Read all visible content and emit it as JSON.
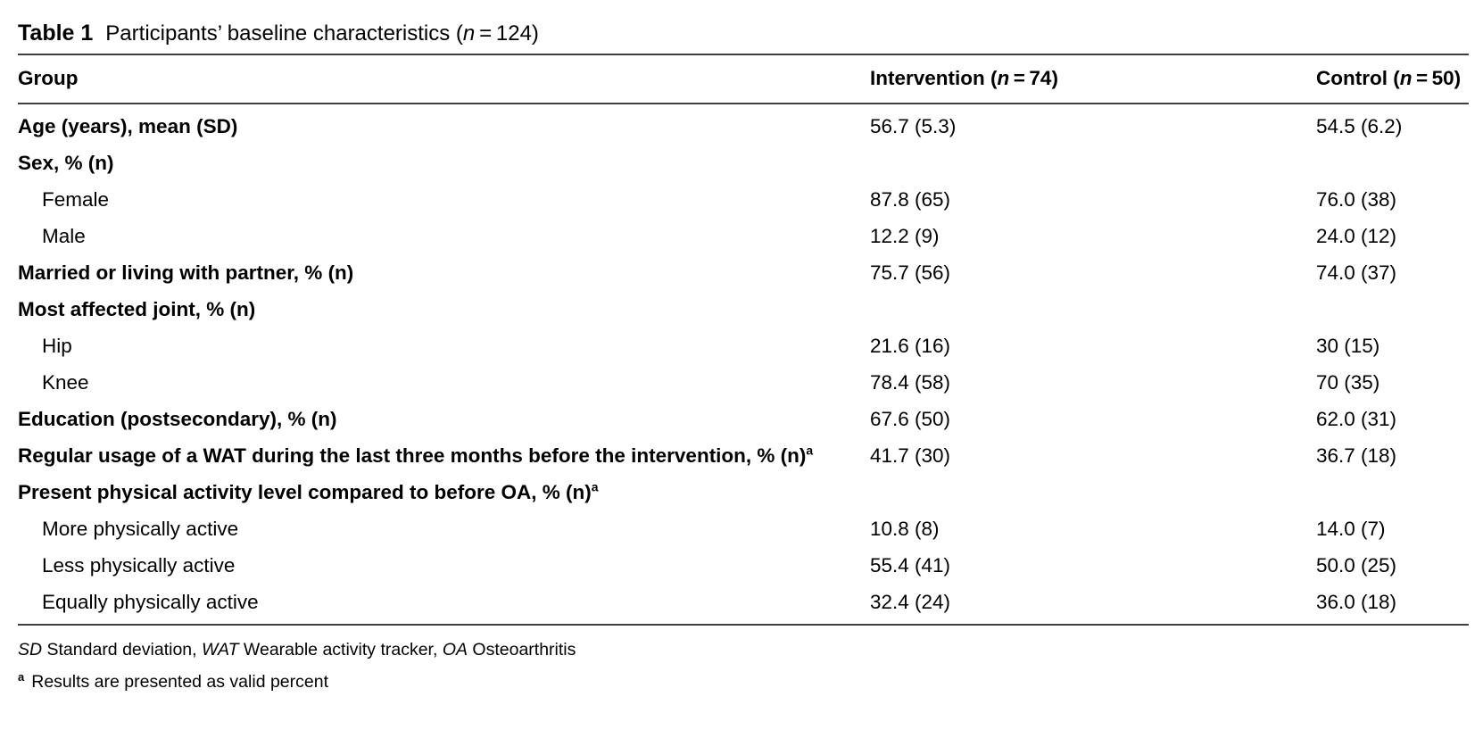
{
  "title": {
    "label": "Table 1",
    "text_pre": "Participants’ baseline characteristics (",
    "n_italic": "n",
    "text_post": " = 124)"
  },
  "header": {
    "group": "Group",
    "intervention": {
      "pre": "Intervention (",
      "n": "n",
      "post": " = 74)"
    },
    "control": {
      "pre": "Control (",
      "n": "n",
      "post": " = 50)"
    }
  },
  "rows": [
    {
      "label": "Age (years), mean (SD)",
      "intervention": "56.7 (5.3)",
      "control": "54.5 (6.2)"
    },
    {
      "label": "Sex, % (n)",
      "intervention": "",
      "control": ""
    },
    {
      "label": "Female",
      "intervention": "87.8 (65)",
      "control": "76.0 (38)"
    },
    {
      "label": "Male",
      "intervention": "12.2 (9)",
      "control": "24.0 (12)"
    },
    {
      "label": "Married or living with partner, % (n)",
      "intervention": "75.7 (56)",
      "control": "74.0 (37)"
    },
    {
      "label": "Most affected joint, % (n)",
      "intervention": "",
      "control": ""
    },
    {
      "label": "Hip",
      "intervention": "21.6 (16)",
      "control": "30 (15)"
    },
    {
      "label": "Knee",
      "intervention": "78.4 (58)",
      "control": "70 (35)"
    },
    {
      "label": "Education (postsecondary), % (n)",
      "intervention": "67.6 (50)",
      "control": "62.0 (31)"
    },
    {
      "label": "Regular usage of a WAT during the last three months before the intervention, % (n)",
      "sup": "a",
      "intervention": "41.7 (30)",
      "control": "36.7 (18)"
    },
    {
      "label": "Present physical activity level compared to before OA, % (n)",
      "sup": "a",
      "intervention": "",
      "control": ""
    },
    {
      "label": "More physically active",
      "intervention": "10.8 (8)",
      "control": "14.0 (7)"
    },
    {
      "label": "Less physically active",
      "intervention": "55.4 (41)",
      "control": "50.0 (25)"
    },
    {
      "label": "Equally physically active",
      "intervention": "32.4 (24)",
      "control": "36.0 (18)"
    }
  ],
  "footnotes": {
    "abbrev": {
      "i1": "SD",
      "t1": " Standard deviation, ",
      "i2": "WAT",
      "t2": " Wearable activity tracker, ",
      "i3": "OA",
      "t3": " Osteoarthritis"
    },
    "note_a": {
      "sup": "a",
      "text": "Results are presented as valid percent"
    }
  }
}
